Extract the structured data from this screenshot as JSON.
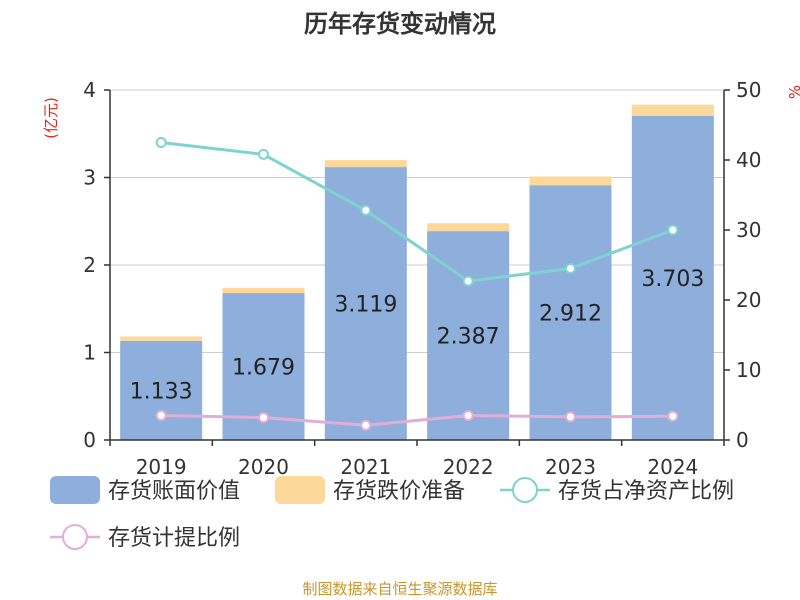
{
  "chart_data": {
    "type": "bar",
    "title": "历年存货变动情况",
    "categories": [
      "2019",
      "2020",
      "2021",
      "2022",
      "2023",
      "2024"
    ],
    "ylabel_left": "(亿元)",
    "ylabel_right": "%",
    "ylim_left": [
      0,
      4
    ],
    "yticks_left": [
      0,
      1,
      2,
      3,
      4
    ],
    "ylim_right": [
      0,
      50
    ],
    "yticks_right": [
      0,
      10,
      20,
      30,
      40,
      50
    ],
    "grid": true,
    "legend_position": "bottom",
    "series": [
      {
        "name": "存货账面价值",
        "type": "bar",
        "stack": "a",
        "color": "#8eaedb",
        "values": [
          1.133,
          1.679,
          3.119,
          2.387,
          2.912,
          3.703
        ],
        "labels": [
          "1.133",
          "1.679",
          "3.119",
          "2.387",
          "2.912",
          "3.703"
        ]
      },
      {
        "name": "存货跌价准备",
        "type": "bar",
        "stack": "a",
        "color": "#fcd89a",
        "values": [
          0.05,
          0.06,
          0.08,
          0.09,
          0.1,
          0.13
        ]
      },
      {
        "name": "存货占净资产比例",
        "type": "line",
        "axis": "right",
        "color": "#7ed3d0",
        "values": [
          42.5,
          40.8,
          32.8,
          22.7,
          24.5,
          30.0
        ]
      },
      {
        "name": "存货计提比例",
        "type": "line",
        "axis": "right",
        "color": "#e3aed6",
        "values": [
          3.5,
          3.2,
          2.1,
          3.5,
          3.3,
          3.4
        ]
      }
    ]
  },
  "source": "制图数据来自恒生聚源数据库"
}
